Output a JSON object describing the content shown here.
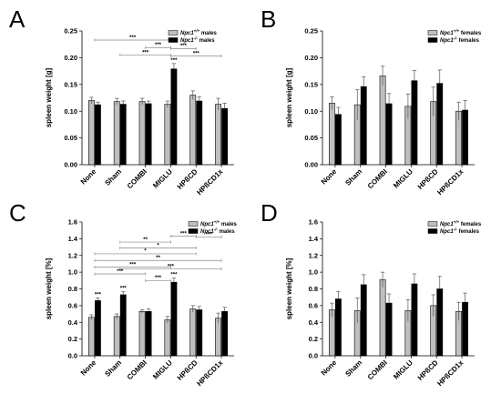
{
  "chart_data": [
    {
      "panel": "A",
      "type": "bar",
      "ylabel": "spleen weight [g]",
      "ylim": [
        0,
        0.25
      ],
      "yticks": [
        "0.00",
        "0.05",
        "0.10",
        "0.15",
        "0.20",
        "0.25"
      ],
      "categories": [
        "None",
        "Sham",
        "COMBI",
        "MIGLU",
        "HPßCD",
        "HPßCD1x"
      ],
      "series": [
        {
          "name": "Npc1+/+ males",
          "legend_base": "Npc1",
          "legend_sup": "+/+",
          "legend_suffix": " males",
          "color": "#bfbfbf",
          "values": [
            0.12,
            0.118,
            0.118,
            0.113,
            0.13,
            0.113
          ],
          "errors": [
            0.006,
            0.006,
            0.006,
            0.006,
            0.008,
            0.011
          ]
        },
        {
          "name": "Npc1-/- males",
          "legend_base": "Npc1",
          "legend_sup": "-/-",
          "legend_suffix": " males",
          "color": "#000000",
          "values": [
            0.112,
            0.113,
            0.114,
            0.179,
            0.119,
            0.105
          ],
          "errors": [
            0.005,
            0.006,
            0.005,
            0.01,
            0.008,
            0.01
          ]
        }
      ],
      "bar_annotations": [
        {
          "category": 3,
          "series": 1,
          "text": "***"
        }
      ],
      "comparisons": [
        {
          "from": 0,
          "to": 3,
          "y": 0.233,
          "text": "***"
        },
        {
          "from": 2,
          "to": 3,
          "y": 0.219,
          "text": "***"
        },
        {
          "from": 3,
          "to": 4,
          "y": 0.217,
          "text": "***"
        },
        {
          "from": 1,
          "to": 3,
          "y": 0.205,
          "text": "***"
        },
        {
          "from": 3,
          "to": 5,
          "y": 0.203,
          "text": "***"
        }
      ]
    },
    {
      "panel": "B",
      "type": "bar",
      "ylabel": "spleen weight [g]",
      "ylim": [
        0,
        0.25
      ],
      "yticks": [
        "0.00",
        "0.05",
        "0.10",
        "0.15",
        "0.20",
        "0.25"
      ],
      "categories": [
        "None",
        "Sham",
        "COMBI",
        "MIGLU",
        "HPßCD",
        "HPßCD1x"
      ],
      "series": [
        {
          "name": "Npc1+/+ females",
          "legend_base": "Npc1",
          "legend_sup": "+/+",
          "legend_suffix": " females",
          "color": "#bfbfbf",
          "values": [
            0.115,
            0.112,
            0.166,
            0.109,
            0.118,
            0.1
          ],
          "errors": [
            0.012,
            0.028,
            0.018,
            0.023,
            0.027,
            0.017
          ]
        },
        {
          "name": "Npc1-/- females",
          "legend_base": "Npc1",
          "legend_sup": "-/-",
          "legend_suffix": " females",
          "color": "#000000",
          "values": [
            0.094,
            0.146,
            0.114,
            0.157,
            0.152,
            0.102
          ],
          "errors": [
            0.013,
            0.018,
            0.019,
            0.019,
            0.025,
            0.018
          ]
        }
      ],
      "bar_annotations": [],
      "comparisons": []
    },
    {
      "panel": "C",
      "type": "bar",
      "ylabel": "spleen weight [%]",
      "ylim": [
        0,
        1.6
      ],
      "yticks": [
        "0.0",
        "0.2",
        "0.4",
        "0.6",
        "0.8",
        "1.0",
        "1.2",
        "1.4",
        "1.6"
      ],
      "categories": [
        "None",
        "Sham",
        "COMBI",
        "MIGLU",
        "HPßCD",
        "HPßCD1x"
      ],
      "series": [
        {
          "name": "Npc1+/+ males",
          "legend_base": "Npc1",
          "legend_sup": "+/+",
          "legend_suffix": " males",
          "color": "#bfbfbf",
          "values": [
            0.46,
            0.47,
            0.53,
            0.43,
            0.56,
            0.45
          ],
          "errors": [
            0.03,
            0.03,
            0.02,
            0.04,
            0.04,
            0.06
          ]
        },
        {
          "name": "Npc1-/- males",
          "legend_base": "Npc1",
          "legend_sup": "-/-",
          "legend_suffix": " males",
          "color": "#000000",
          "values": [
            0.66,
            0.73,
            0.53,
            0.88,
            0.55,
            0.53
          ],
          "errors": [
            0.03,
            0.04,
            0.03,
            0.05,
            0.04,
            0.05
          ]
        }
      ],
      "bar_annotations": [
        {
          "category": 0,
          "series": 1,
          "text": "***"
        },
        {
          "category": 1,
          "series": 1,
          "text": "***"
        },
        {
          "category": 3,
          "series": 1,
          "text": "***"
        }
      ],
      "comparisons": [
        {
          "from": 3,
          "to": 4,
          "y": 1.43,
          "text": "***"
        },
        {
          "from": 4,
          "to": 5,
          "y": 1.42,
          "text": "***"
        },
        {
          "from": 1,
          "to": 3,
          "y": 1.36,
          "text": "**"
        },
        {
          "from": 1,
          "to": 4,
          "y": 1.29,
          "text": "*"
        },
        {
          "from": 0,
          "to": 4,
          "y": 1.22,
          "text": "*"
        },
        {
          "from": 0,
          "to": 5,
          "y": 1.14,
          "text": "**"
        },
        {
          "from": 0,
          "to": 3,
          "y": 1.06,
          "text": "***"
        },
        {
          "from": 1,
          "to": 5,
          "y": 1.04,
          "text": "***"
        },
        {
          "from": 0,
          "to": 2,
          "y": 0.98,
          "text": "***"
        },
        {
          "from": 2,
          "to": 3,
          "y": 0.9,
          "text": "***"
        }
      ]
    },
    {
      "panel": "D",
      "type": "bar",
      "ylabel": "spleen weight  [%]",
      "ylim": [
        0,
        1.6
      ],
      "yticks": [
        "0.0",
        "0.2",
        "0.4",
        "0.6",
        "0.8",
        "1.0",
        "1.2",
        "1.4",
        "1.6"
      ],
      "categories": [
        "None",
        "Sham",
        "COMBI",
        "MIGLU",
        "HPßCD",
        "HPßCD1x"
      ],
      "series": [
        {
          "name": "Npc1+/+ females",
          "legend_base": "Npc1",
          "legend_sup": "+/+",
          "legend_suffix": " females",
          "color": "#bfbfbf",
          "values": [
            0.55,
            0.54,
            0.91,
            0.54,
            0.6,
            0.53
          ],
          "errors": [
            0.08,
            0.15,
            0.09,
            0.13,
            0.13,
            0.11
          ]
        },
        {
          "name": "Npc1-/- females",
          "legend_base": "Npc1",
          "legend_sup": "-/-",
          "legend_suffix": " females",
          "color": "#000000",
          "values": [
            0.68,
            0.85,
            0.63,
            0.86,
            0.8,
            0.64
          ],
          "errors": [
            0.09,
            0.12,
            0.11,
            0.12,
            0.15,
            0.11
          ]
        }
      ],
      "bar_annotations": [],
      "comparisons": []
    }
  ]
}
